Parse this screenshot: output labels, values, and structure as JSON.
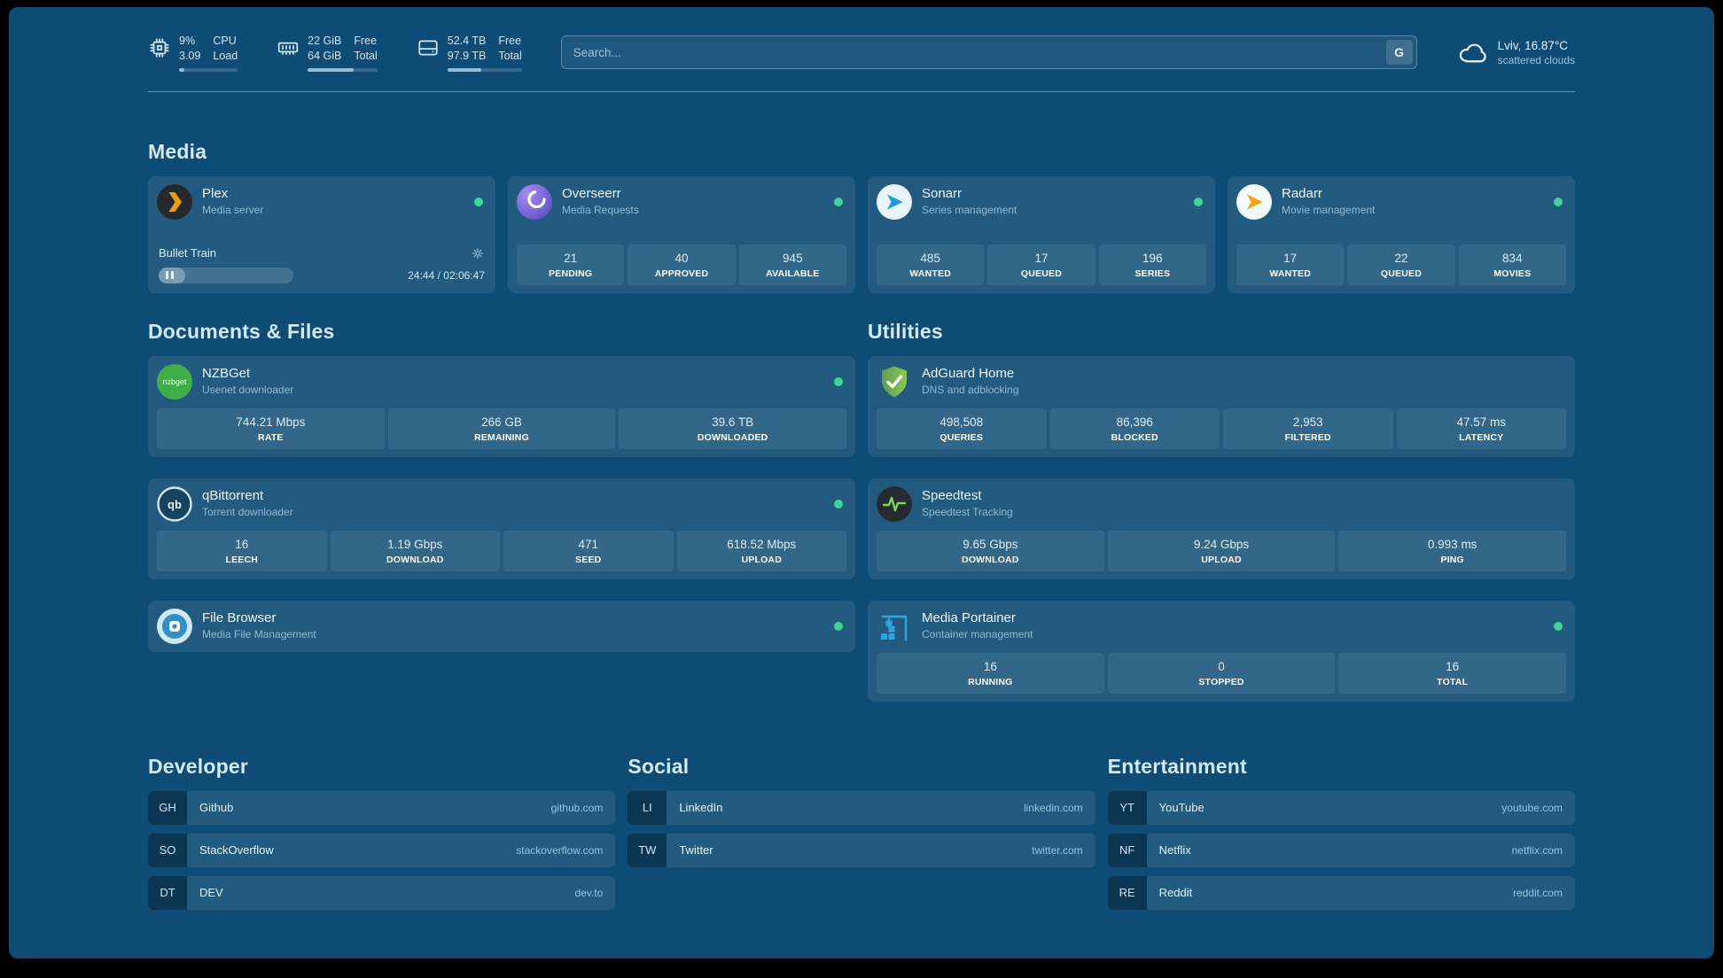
{
  "colors": {
    "background": "#0f4c75",
    "status_online": "#3ed598",
    "progress_fill": "#8fc0de"
  },
  "topbar": {
    "resources": [
      {
        "icon": "cpu",
        "col1": [
          "9%",
          "3.09"
        ],
        "col2": [
          "CPU",
          "Load"
        ],
        "percent": 9
      },
      {
        "icon": "memory",
        "col1": [
          "22 GiB",
          "64 GiB"
        ],
        "col2": [
          "Free",
          "Total"
        ],
        "percent": 66
      },
      {
        "icon": "disk",
        "col1": [
          "52.4 TB",
          "97.9 TB"
        ],
        "col2": [
          "Free",
          "Total"
        ],
        "percent": 46
      }
    ],
    "search": {
      "placeholder": "Search...",
      "provider_button": "G"
    },
    "weather": {
      "location": "Lviv, 16.87°C",
      "condition": "scattered clouds"
    }
  },
  "groups": {
    "media": {
      "title": "Media",
      "services": [
        {
          "name": "Plex",
          "subtitle": "Media server",
          "status": "online",
          "now_playing": {
            "title": "Bullet Train",
            "time": "24:44 / 02:06:47",
            "progress_percent": 20
          }
        },
        {
          "name": "Overseerr",
          "subtitle": "Media Requests",
          "status": "online",
          "stats": [
            {
              "value": "21",
              "label": "PENDING"
            },
            {
              "value": "40",
              "label": "APPROVED"
            },
            {
              "value": "945",
              "label": "AVAILABLE"
            }
          ]
        },
        {
          "name": "Sonarr",
          "subtitle": "Series management",
          "status": "online",
          "stats": [
            {
              "value": "485",
              "label": "WANTED"
            },
            {
              "value": "17",
              "label": "QUEUED"
            },
            {
              "value": "196",
              "label": "SERIES"
            }
          ]
        },
        {
          "name": "Radarr",
          "subtitle": "Movie management",
          "status": "online",
          "stats": [
            {
              "value": "17",
              "label": "WANTED"
            },
            {
              "value": "22",
              "label": "QUEUED"
            },
            {
              "value": "834",
              "label": "MOVIES"
            }
          ]
        }
      ]
    },
    "documents": {
      "title": "Documents & Files",
      "services": [
        {
          "name": "NZBGet",
          "subtitle": "Usenet downloader",
          "status": "online",
          "stats": [
            {
              "value": "744.21 Mbps",
              "label": "RATE"
            },
            {
              "value": "266 GB",
              "label": "REMAINING"
            },
            {
              "value": "39.6 TB",
              "label": "DOWNLOADED"
            }
          ]
        },
        {
          "name": "qBittorrent",
          "subtitle": "Torrent downloader",
          "status": "online",
          "stats": [
            {
              "value": "16",
              "label": "LEECH"
            },
            {
              "value": "1.19 Gbps",
              "label": "DOWNLOAD"
            },
            {
              "value": "471",
              "label": "SEED"
            },
            {
              "value": "618.52 Mbps",
              "label": "UPLOAD"
            }
          ]
        },
        {
          "name": "File Browser",
          "subtitle": "Media File Management",
          "status": "online",
          "stats": []
        }
      ]
    },
    "utilities": {
      "title": "Utilities",
      "services": [
        {
          "name": "AdGuard Home",
          "subtitle": "DNS and adblocking",
          "stats": [
            {
              "value": "498,508",
              "label": "QUERIES"
            },
            {
              "value": "86,396",
              "label": "BLOCKED"
            },
            {
              "value": "2,953",
              "label": "FILTERED"
            },
            {
              "value": "47.57 ms",
              "label": "LATENCY"
            }
          ]
        },
        {
          "name": "Speedtest",
          "subtitle": "Speedtest Tracking",
          "stats": [
            {
              "value": "9.65 Gbps",
              "label": "DOWNLOAD"
            },
            {
              "value": "9.24 Gbps",
              "label": "UPLOAD"
            },
            {
              "value": "0.993 ms",
              "label": "PING"
            }
          ]
        },
        {
          "name": "Media Portainer",
          "subtitle": "Container management",
          "status": "online",
          "stats": [
            {
              "value": "16",
              "label": "RUNNING"
            },
            {
              "value": "0",
              "label": "STOPPED"
            },
            {
              "value": "16",
              "label": "TOTAL"
            }
          ]
        }
      ]
    }
  },
  "bookmarks": [
    {
      "title": "Developer",
      "items": [
        {
          "abbr": "GH",
          "name": "Github",
          "domain": "github.com"
        },
        {
          "abbr": "SO",
          "name": "StackOverflow",
          "domain": "stackoverflow.com"
        },
        {
          "abbr": "DT",
          "name": "DEV",
          "domain": "dev.to"
        }
      ]
    },
    {
      "title": "Social",
      "items": [
        {
          "abbr": "LI",
          "name": "LinkedIn",
          "domain": "linkedin.com"
        },
        {
          "abbr": "TW",
          "name": "Twitter",
          "domain": "twitter.com"
        }
      ]
    },
    {
      "title": "Entertainment",
      "items": [
        {
          "abbr": "YT",
          "name": "YouTube",
          "domain": "youtube.com"
        },
        {
          "abbr": "NF",
          "name": "Netflix",
          "domain": "netflix.com"
        },
        {
          "abbr": "RE",
          "name": "Reddit",
          "domain": "reddit.com"
        }
      ]
    }
  ]
}
